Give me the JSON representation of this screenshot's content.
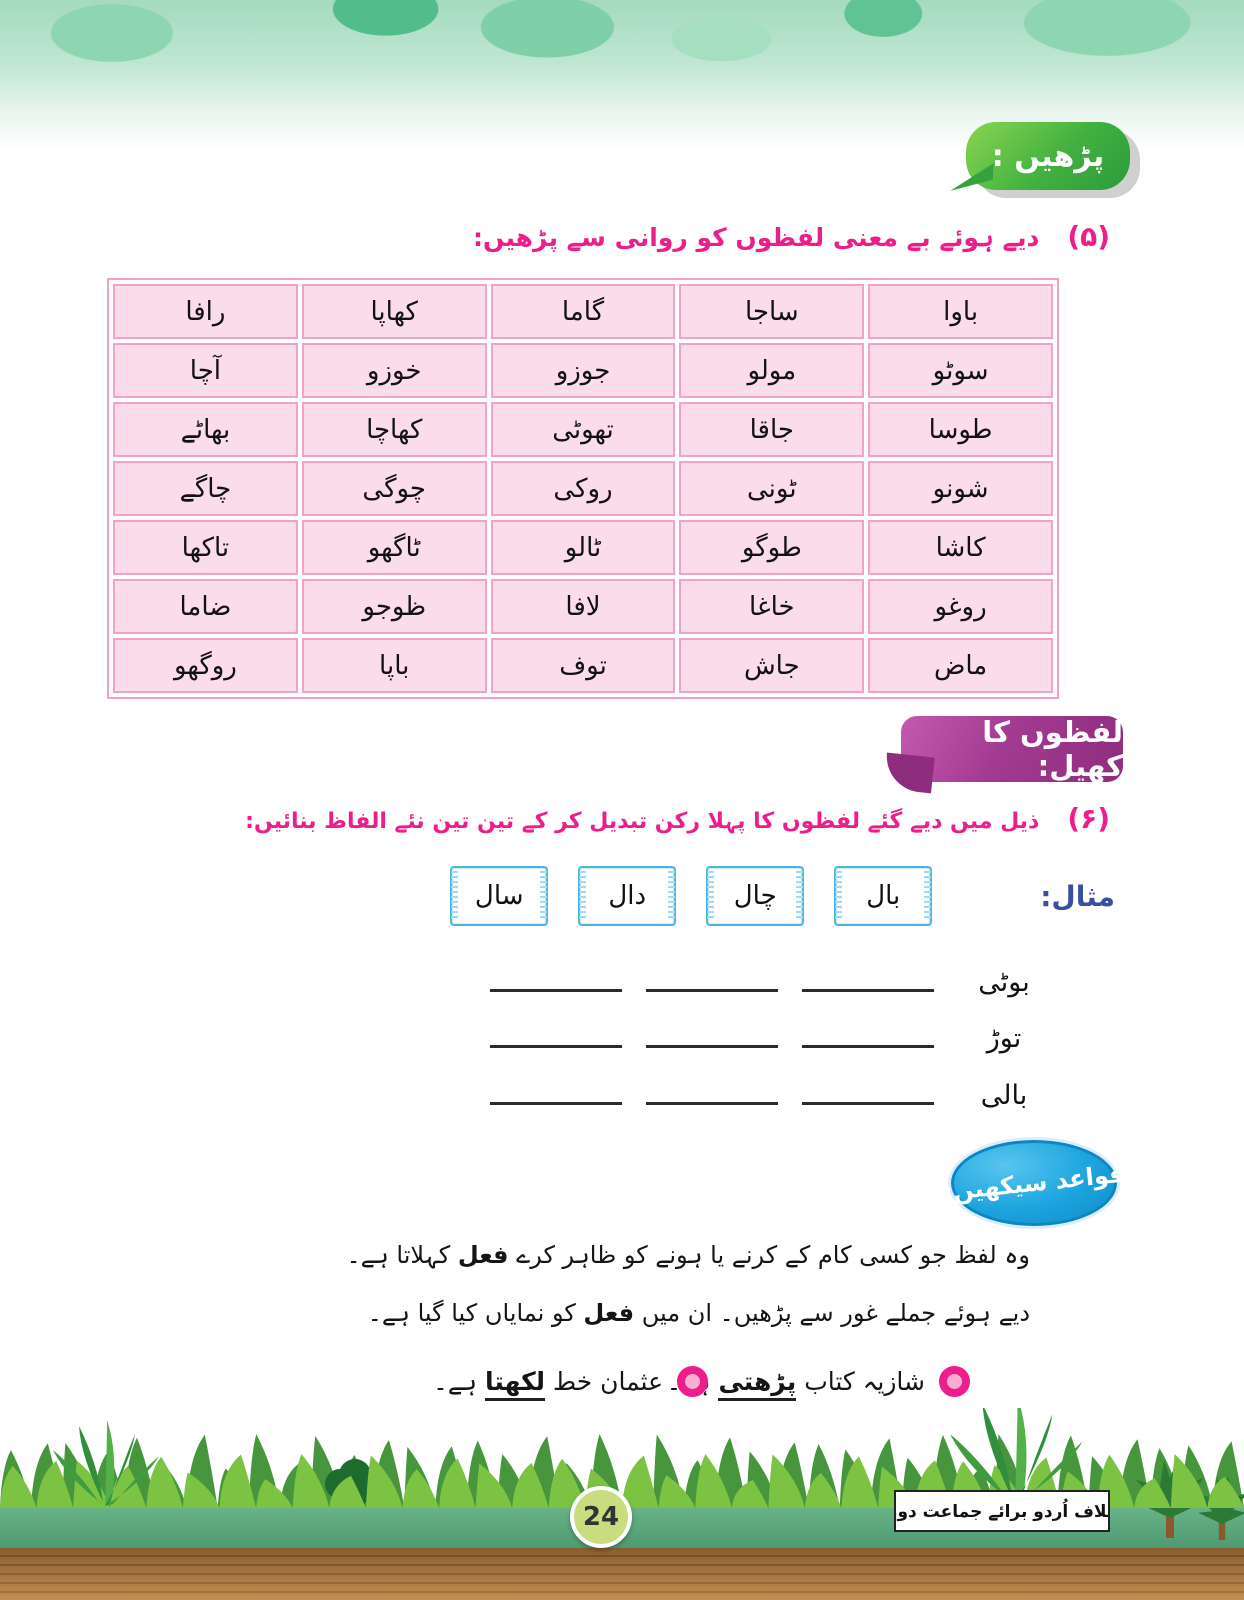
{
  "badges": {
    "read": "پڑھیں :",
    "word_game": "لفظوں کا کھیل:",
    "grammar": "قواعد سیکھیں:"
  },
  "exercise5": {
    "number": "(۵)",
    "instruction": "دیے ہوئے بے معنی لفظوں کو روانی سے پڑھیں:"
  },
  "table": {
    "rows": [
      [
        "باوا",
        "ساجا",
        "گاما",
        "کھاپا",
        "رافا"
      ],
      [
        "سوٹو",
        "مولو",
        "جوزو",
        "خوزو",
        "آچا"
      ],
      [
        "طوسا",
        "جاقا",
        "تھوٹی",
        "کھاچا",
        "بھاٹے"
      ],
      [
        "شونو",
        "ٹونی",
        "روکی",
        "چوگی",
        "چاگے"
      ],
      [
        "کاشا",
        "طوگو",
        "ٹالو",
        "ٹاگھو",
        "تاکھا"
      ],
      [
        "روغو",
        "خاغا",
        "لافا",
        "ظوجو",
        "ضاما"
      ],
      [
        "ماض",
        "جاش",
        "توف",
        "باپا",
        "روگھو"
      ]
    ]
  },
  "exercise6": {
    "number": "(۶)",
    "instruction": "ذیل میں دیے گئے لفظوں کا پہلا رکن تبدیل کر کے تین تین نئے الفاظ بنائیں:",
    "example_label": "مثال:",
    "example_words": [
      "بال",
      "چال",
      "دال",
      "سال"
    ],
    "practice_words": [
      "بوٹی",
      "توڑ",
      "بالی"
    ],
    "blanks_per_row": 3
  },
  "grammar": {
    "line1_pre": "وہ لفظ جو کسی کام کے کرنے یا ہونے کو ظاہر کرے ",
    "line1_bold": "فعل",
    "line1_post": " کہلاتا ہے۔",
    "line2_pre": "دیے ہوئے جملے غور سے پڑھیں۔ ان میں ",
    "line2_bold": "فعل",
    "line2_post": " کو نمایاں کیا گیا ہے۔",
    "bullets": [
      {
        "pre": "شازیہ کتاب ",
        "verb": "پڑھتی",
        "post": " ہے۔"
      },
      {
        "pre": "عثمان خط ",
        "verb": "لکھتا",
        "post": " ہے۔"
      }
    ]
  },
  "footer": {
    "page_number": "24",
    "book_title": "ایلاف اُردو برائے جماعت دوم"
  },
  "colors": {
    "pink_text": "#ec1e8c",
    "table_cell_bg": "#fbdcea",
    "table_border": "#f1a3c5",
    "read_badge_green": "#2c9a3b",
    "word_game_purple": "#8e2d7e",
    "grammar_blue": "#1ca4de",
    "example_label_blue": "#3a4f9f",
    "example_box_border": "#49b6e6",
    "footer_band_green": "#4f9a71",
    "footer_wood_brown": "#a9763f",
    "page_circle_green": "#c9dc7f"
  }
}
